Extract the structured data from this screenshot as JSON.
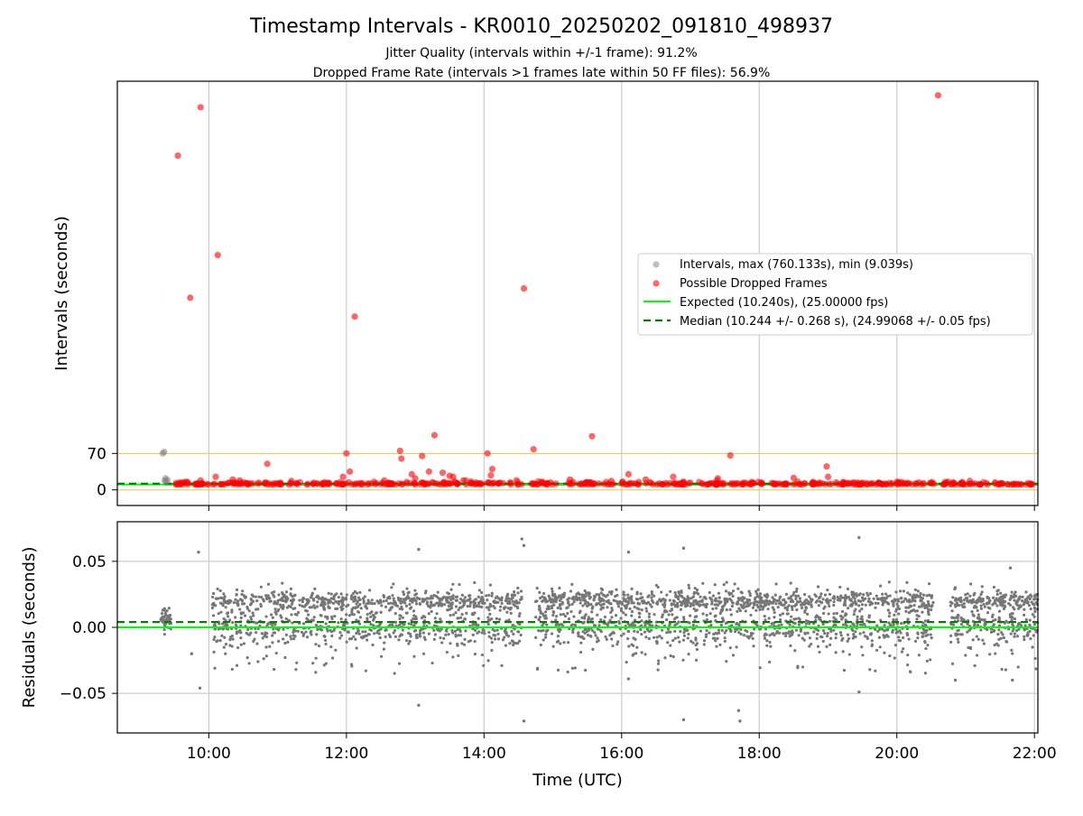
{
  "chart_data": [
    {
      "panel": "intervals",
      "type": "scatter",
      "title": "Timestamp Intervals - KR0010_20250202_091810_498937",
      "subtitle_lines": [
        "Jitter Quality (intervals within +/-1 frame): 91.2%",
        "Dropped Frame Rate (intervals >1 frames late within 50 FF files): 56.9%"
      ],
      "xlabel": "",
      "ylabel": "Intervals (seconds)",
      "xlim_hours": [
        8.67,
        22.05
      ],
      "ylim": [
        -30,
        785
      ],
      "yticks": [
        {
          "value": 0,
          "label": "0"
        },
        {
          "value": 70,
          "label": "70"
        }
      ],
      "xgrid_hours": [
        10,
        12,
        14,
        16,
        18,
        20,
        22
      ],
      "grid": "vertical",
      "reference_lines": {
        "expected_value": 10.24,
        "median_value": 10.244,
        "threshold_high": 70,
        "threshold_low": 0
      },
      "colors": {
        "intervals": "#808080",
        "dropped": "#ff0000",
        "expected": "#00ff00",
        "median": "#008000",
        "threshold": "#f5c242",
        "band": "#2f5f2f"
      },
      "legend": {
        "placement": "center-right",
        "entries": [
          {
            "label": "Intervals, max (760.133s), min (9.039s)",
            "kind": "intervals"
          },
          {
            "label": "Possible Dropped Frames",
            "kind": "dropped"
          },
          {
            "label": "Expected (10.240s), (25.00000 fps)",
            "kind": "expected"
          },
          {
            "label": "Median (10.244 +/- 0.268 s), (24.99068 +/- 0.05 fps)",
            "kind": "median"
          }
        ]
      },
      "series": [
        {
          "name": "Intervals, max (760.133s), min (9.039s)",
          "x": [
            9.33,
            9.35,
            9.36,
            9.37,
            9.38,
            9.4
          ],
          "y": [
            70,
            73,
            18,
            22,
            15,
            19
          ]
        },
        {
          "name": "Possible Dropped Frames",
          "x": [
            9.88,
            9.55,
            10.13,
            9.73,
            12.12,
            14.58,
            20.6,
            9.88,
            12.0,
            12.05,
            12.78,
            12.8,
            12.95,
            13.1,
            13.2,
            13.28,
            13.4,
            13.5,
            14.05,
            14.12,
            14.72,
            15.57,
            17.58,
            18.98,
            10.85,
            13.0,
            13.55,
            14.1,
            15.25,
            16.1,
            16.75,
            10.1,
            10.35,
            10.45,
            11.2,
            11.95,
            12.55,
            13.7,
            14.85,
            15.85,
            16.35,
            17.4,
            18.5,
            19.0,
            20.95,
            21.1
          ],
          "y": [
            735,
            642,
            451,
            369,
            333,
            387,
            758,
            18,
            70,
            35,
            75,
            60,
            30,
            65,
            35,
            105,
            33,
            27,
            70,
            40,
            78,
            103,
            66,
            45,
            50,
            22,
            25,
            28,
            20,
            30,
            25,
            25,
            20,
            18,
            17,
            25,
            18,
            18,
            15,
            17,
            20,
            22,
            23,
            25,
            15,
            12
          ]
        }
      ],
      "dense_band": {
        "x_range": [
          9.35,
          22.05
        ],
        "y_range": [
          8.5,
          13.5
        ]
      }
    },
    {
      "panel": "residuals",
      "type": "scatter",
      "xlabel": "Time (UTC)",
      "ylabel": "Residuals (seconds)",
      "xlim_hours": [
        8.67,
        22.05
      ],
      "ylim": [
        -0.08,
        0.08
      ],
      "yticks": [
        {
          "value": 0.05,
          "label": "0.05"
        },
        {
          "value": 0.0,
          "label": "0.00"
        },
        {
          "value": -0.05,
          "label": "−0.05"
        }
      ],
      "xticks": [
        {
          "hour": 10,
          "label": "10:00"
        },
        {
          "hour": 12,
          "label": "12:00"
        },
        {
          "hour": 14,
          "label": "14:00"
        },
        {
          "hour": 16,
          "label": "16:00"
        },
        {
          "hour": 18,
          "label": "18:00"
        },
        {
          "hour": 20,
          "label": "20:00"
        },
        {
          "hour": 22,
          "label": "22:00"
        }
      ],
      "grid": "both",
      "reference_lines": {
        "expected_residual": 0.0,
        "median_residual": 0.004
      },
      "colors": {
        "points": "#777777",
        "expected": "#00ff00",
        "median": "#008000"
      },
      "bands": [
        {
          "center": 0.02,
          "spread": 0.006
        },
        {
          "center": 0.0,
          "spread": 0.012
        }
      ],
      "gaps_hours": [
        [
          9.45,
          9.85
        ],
        [
          9.9,
          10.05
        ],
        [
          14.55,
          14.75
        ],
        [
          20.55,
          20.78
        ]
      ],
      "outliers": {
        "x": [
          9.85,
          9.87,
          9.75,
          13.05,
          13.05,
          14.55,
          14.58,
          14.58,
          16.1,
          16.1,
          16.9,
          16.9,
          17.7,
          17.72,
          19.45,
          19.45,
          20.85,
          20.85,
          21.65,
          21.68
        ],
        "y": [
          0.057,
          -0.046,
          -0.02,
          0.059,
          -0.059,
          0.067,
          0.062,
          -0.071,
          0.057,
          -0.039,
          0.06,
          -0.07,
          -0.063,
          -0.071,
          0.068,
          -0.049,
          -0.04,
          0.03,
          0.045,
          -0.04
        ]
      }
    }
  ]
}
